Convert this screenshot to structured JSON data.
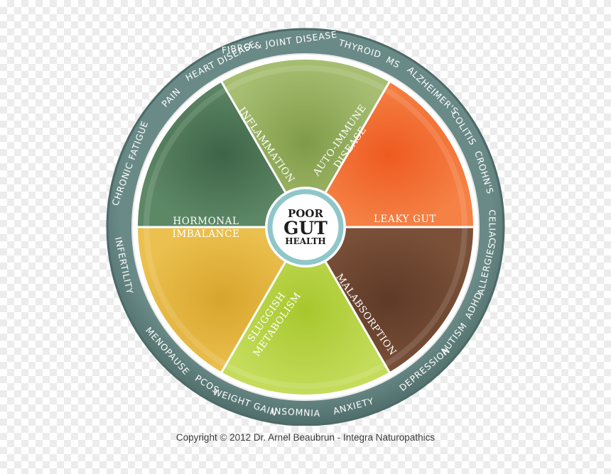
{
  "center": {
    "line1": "POOR",
    "line2": "GUT",
    "line3": "HEALTH"
  },
  "segments": [
    {
      "key": "inflammation",
      "lines": [
        "INFLAMMATION"
      ],
      "color": "#8fa95a"
    },
    {
      "key": "autoimmune",
      "lines": [
        "AUTO-IMMUNE",
        "DISEASE"
      ],
      "color": "#f0662d"
    },
    {
      "key": "leaky",
      "lines": [
        "LEAKY GUT"
      ],
      "color": "#f0662d"
    },
    {
      "key": "malabsorption",
      "lines": [
        "MALABSORPTION"
      ],
      "color": "#6e4630"
    },
    {
      "key": "sluggish",
      "lines": [
        "SLUGGISH",
        "METABOLISM"
      ],
      "color": "#b2cf3a"
    },
    {
      "key": "hormonal",
      "lines": [
        "HORMONAL",
        "IMBALANCE"
      ],
      "color": "#4a7652"
    }
  ],
  "ring_labels": [
    "FIBRO & JOINT DISEASE",
    "THYROID",
    "MS",
    "ALZHEIMER'S",
    "COLITIS",
    "CROHN'S",
    "CELIAC",
    "ALLERGIES",
    "ADHD",
    "AUTISM",
    "DEPRESSION",
    "ANXIETY",
    "INSOMNIA",
    "WEIGHT GAIN",
    "PCOS",
    "MENOPAUSE",
    "INFERTILITY",
    "CHRONIC FATIGUE",
    "PAIN",
    "HEART DISEASE"
  ],
  "colors": {
    "outer_ring": "#5f7f7c",
    "hub_border": "#8fc6c9",
    "orange": "#f0662d",
    "olive": "#8fa95a",
    "brown": "#6e4630",
    "lime": "#b2cf3a",
    "mustard": "#e0b13a",
    "forest": "#4a7652"
  },
  "copyright": "Copyright © 2012 Dr. Arnel Beaubrun - Integra Naturopathics"
}
